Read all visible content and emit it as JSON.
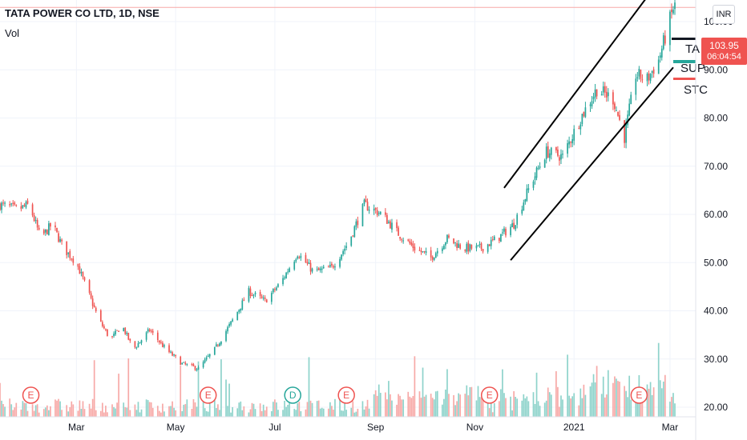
{
  "header": {
    "title": "TATA POWER CO LTD, 1D, NSE",
    "volume_label": "Vol",
    "currency": "INR"
  },
  "last_price": {
    "price": "103.95",
    "countdown": "06:04:54"
  },
  "indicator_labels": [
    "TA",
    "SUP",
    "STC"
  ],
  "colors": {
    "up": "#26a69a",
    "down": "#ef5350",
    "volume_up": "#8ed3cb",
    "volume_down": "#f7a9a7",
    "event_earnings": "#ef5350",
    "event_dividend": "#26a69a",
    "trendline": "#000000"
  },
  "chart_data": {
    "type": "candlestick",
    "y_axis_side": "right",
    "y_ticks": [
      "20.00",
      "30.00",
      "40.00",
      "50.00",
      "60.00",
      "70.00",
      "80.00",
      "90.00",
      "100.00"
    ],
    "y_tick_values": [
      20,
      30,
      40,
      50,
      60,
      70,
      80,
      90,
      100
    ],
    "ylim": [
      19,
      111
    ],
    "x_ticks": [
      "Mar",
      "May",
      "Jul",
      "Sep",
      "Nov",
      "2021",
      "Mar"
    ],
    "x_tick_dates": [
      "2020-03-01",
      "2020-05-01",
      "2020-07-01",
      "2020-09-01",
      "2020-11-01",
      "2021-01-01",
      "2021-03-01"
    ],
    "date_range": [
      "2020-01-14",
      "2021-03-04"
    ],
    "close_path": [
      [
        "2020-01-14",
        62
      ],
      [
        "2020-01-25",
        61
      ],
      [
        "2020-02-01",
        62
      ],
      [
        "2020-02-08",
        55
      ],
      [
        "2020-02-15",
        58
      ],
      [
        "2020-02-22",
        53
      ],
      [
        "2020-03-01",
        50
      ],
      [
        "2020-03-08",
        44
      ],
      [
        "2020-03-15",
        38
      ],
      [
        "2020-03-22",
        34
      ],
      [
        "2020-03-29",
        37
      ],
      [
        "2020-04-05",
        32
      ],
      [
        "2020-04-15",
        36
      ],
      [
        "2020-04-25",
        32
      ],
      [
        "2020-05-05",
        29
      ],
      [
        "2020-05-15",
        28
      ],
      [
        "2020-05-25",
        32
      ],
      [
        "2020-06-05",
        38
      ],
      [
        "2020-06-15",
        44
      ],
      [
        "2020-06-25",
        42
      ],
      [
        "2020-07-05",
        46
      ],
      [
        "2020-07-15",
        52
      ],
      [
        "2020-07-25",
        48
      ],
      [
        "2020-08-05",
        49
      ],
      [
        "2020-08-15",
        54
      ],
      [
        "2020-08-25",
        62
      ],
      [
        "2020-09-05",
        60
      ],
      [
        "2020-09-15",
        56
      ],
      [
        "2020-09-25",
        53
      ],
      [
        "2020-10-05",
        51
      ],
      [
        "2020-10-15",
        55
      ],
      [
        "2020-10-25",
        53
      ],
      [
        "2020-11-05",
        53
      ],
      [
        "2020-11-15",
        55
      ],
      [
        "2020-11-25",
        58
      ],
      [
        "2020-12-05",
        66
      ],
      [
        "2020-12-15",
        73
      ],
      [
        "2020-12-25",
        72
      ],
      [
        "2021-01-05",
        80
      ],
      [
        "2021-01-15",
        86
      ],
      [
        "2021-01-25",
        84
      ],
      [
        "2021-02-01",
        76
      ],
      [
        "2021-02-08",
        89
      ],
      [
        "2021-02-15",
        88
      ],
      [
        "2021-02-22",
        92
      ],
      [
        "2021-03-04",
        103.95
      ]
    ],
    "trendlines": [
      {
        "start": [
          "2020-11-19",
          65.5
        ],
        "end": [
          "2021-02-28",
          111
        ]
      },
      {
        "start": [
          "2020-11-23",
          50.5
        ],
        "end": [
          "2021-03-03",
          90.5
        ]
      }
    ],
    "volume_max_hint": "relative",
    "events": [
      {
        "date": "2020-02-02",
        "type": "E"
      },
      {
        "date": "2020-05-21",
        "type": "E"
      },
      {
        "date": "2020-07-12",
        "type": "D"
      },
      {
        "date": "2020-08-14",
        "type": "E"
      },
      {
        "date": "2020-11-10",
        "type": "E"
      },
      {
        "date": "2021-02-10",
        "type": "E"
      }
    ]
  }
}
